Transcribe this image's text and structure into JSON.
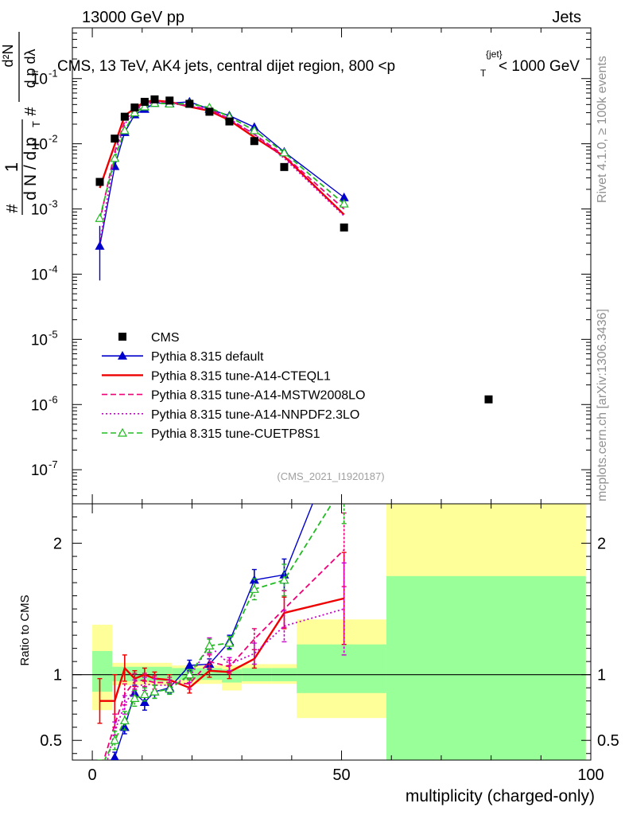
{
  "header": {
    "beam": "13000 GeV pp",
    "category": "Jets"
  },
  "side": {
    "rivet": "Rivet 4.1.0, ≥ 100k events",
    "mcplots": "mcplots.cern.ch [arXiv:1306.3436]"
  },
  "source_tag": "(CMS_2021_I1920187)",
  "chart_data": {
    "type": "line",
    "title": "CMS, 13 TeV, AK4 jets, central dijet region, 800 <p_T^{jet}> < 1000 GeV",
    "ylabel_main": "1/(dN/dp_T) d²N/(dp_T dλ)",
    "ylabel_ratio": "Ratio to CMS",
    "xlabel": "multiplicity (charged-only)",
    "xlim": [
      -4,
      100
    ],
    "ylim_main": [
      3e-08,
      0.6
    ],
    "ylim_ratio": [
      0.35,
      2.3
    ],
    "x_ticks": [
      "0",
      "50",
      "100"
    ],
    "y_ticks_main": [
      "10^-7",
      "10^-6",
      "10^-5",
      "10^-4",
      "10^-3",
      "10^-2",
      "10^-1"
    ],
    "y_ticks_ratio": [
      "0.5",
      "1",
      "2"
    ],
    "data": {
      "name": "CMS",
      "points": [
        {
          "x": 1.5,
          "y": 0.0026
        },
        {
          "x": 4.5,
          "y": 0.012
        },
        {
          "x": 6.5,
          "y": 0.026
        },
        {
          "x": 8.5,
          "y": 0.036
        },
        {
          "x": 10.5,
          "y": 0.044
        },
        {
          "x": 12.5,
          "y": 0.048
        },
        {
          "x": 15.5,
          "y": 0.046
        },
        {
          "x": 19.5,
          "y": 0.041
        },
        {
          "x": 23.5,
          "y": 0.031
        },
        {
          "x": 27.5,
          "y": 0.022
        },
        {
          "x": 32.5,
          "y": 0.011
        },
        {
          "x": 38.5,
          "y": 0.0044
        },
        {
          "x": 50.5,
          "y": 0.00052
        },
        {
          "x": 79.5,
          "y": 1.2e-06
        }
      ],
      "uncertainty_bands": [
        {
          "x0": 0,
          "x1": 4,
          "inner": [
            0.87,
            1.18
          ],
          "outer": [
            0.73,
            1.38
          ]
        },
        {
          "x0": 4,
          "x1": 16,
          "inner": [
            0.95,
            1.06
          ],
          "outer": [
            0.92,
            1.09
          ]
        },
        {
          "x0": 16,
          "x1": 26,
          "inner": [
            0.96,
            1.05
          ],
          "outer": [
            0.93,
            1.07
          ]
        },
        {
          "x0": 26,
          "x1": 30,
          "inner": [
            0.94,
            1.04
          ],
          "outer": [
            0.88,
            1.07
          ]
        },
        {
          "x0": 30,
          "x1": 36,
          "inner": [
            0.95,
            1.05
          ],
          "outer": [
            0.93,
            1.08
          ]
        },
        {
          "x0": 36,
          "x1": 41,
          "inner": [
            0.95,
            1.05
          ],
          "outer": [
            0.93,
            1.08
          ]
        },
        {
          "x0": 41,
          "x1": 59,
          "inner": [
            0.86,
            1.23
          ],
          "outer": [
            0.67,
            1.42
          ]
        },
        {
          "x0": 59,
          "x1": 99,
          "inner": [
            0.0,
            1.75
          ],
          "outer": [
            0.0,
            2.3
          ]
        }
      ]
    },
    "series": [
      {
        "name": "Pythia 8.315 default",
        "color": "#0000cc",
        "style": "solid",
        "marker": "triangle-filled",
        "x": [
          1.5,
          4.5,
          6.5,
          8.5,
          10.5,
          12.5,
          15.5,
          19.5,
          23.5,
          27.5,
          32.5,
          38.5,
          50.5
        ],
        "y": [
          0.00027,
          0.0045,
          0.015,
          0.028,
          0.034,
          0.042,
          0.042,
          0.044,
          0.034,
          0.027,
          0.018,
          0.0075,
          0.0015
        ],
        "ratio": [
          0.1,
          0.37,
          0.6,
          0.86,
          0.79,
          0.87,
          0.9,
          1.07,
          1.08,
          1.25,
          1.72,
          1.76,
          2.9
        ],
        "ratio_err": [
          0.04,
          0.04,
          0.05,
          0.06,
          0.06,
          0.05,
          0.04,
          0.04,
          0.04,
          0.05,
          0.08,
          0.12,
          0.3
        ]
      },
      {
        "name": "Pythia 8.315 tune-A14-CTEQL1",
        "color": "#ee0000",
        "style": "solid",
        "marker": "none",
        "x": [
          1.5,
          4.5,
          6.5,
          8.5,
          10.5,
          12.5,
          15.5,
          19.5,
          23.5,
          27.5,
          32.5,
          38.5,
          50.5
        ],
        "y": [
          0.0021,
          0.0097,
          0.027,
          0.035,
          0.044,
          0.046,
          0.044,
          0.037,
          0.032,
          0.023,
          0.0126,
          0.0064,
          0.00082
        ],
        "ratio": [
          0.8,
          0.8,
          1.05,
          0.97,
          1.0,
          0.97,
          0.96,
          0.9,
          1.03,
          1.02,
          1.12,
          1.47,
          1.58
        ],
        "ratio_err": [
          0.17,
          0.2,
          0.1,
          0.06,
          0.05,
          0.05,
          0.04,
          0.04,
          0.05,
          0.05,
          0.07,
          0.12,
          0.35
        ]
      },
      {
        "name": "Pythia 8.315 tune-A14-MSTW2008LO",
        "color": "#ee0077",
        "style": "dashed",
        "marker": "none",
        "x": [
          1.5,
          4.5,
          6.5,
          8.5,
          10.5,
          12.5,
          15.5,
          19.5,
          23.5,
          27.5,
          32.5,
          38.5,
          50.5
        ],
        "y": [
          0.00065,
          0.0075,
          0.022,
          0.034,
          0.042,
          0.045,
          0.043,
          0.038,
          0.034,
          0.024,
          0.014,
          0.0066,
          0.001
        ],
        "ratio": [
          0.25,
          0.62,
          0.85,
          0.95,
          0.96,
          0.94,
          0.94,
          0.93,
          1.1,
          1.06,
          1.27,
          1.5,
          1.95
        ],
        "ratio_err": [
          0.06,
          0.08,
          0.08,
          0.06,
          0.05,
          0.05,
          0.04,
          0.04,
          0.05,
          0.05,
          0.08,
          0.14,
          0.28
        ]
      },
      {
        "name": "Pythia 8.315 tune-A14-NNPDF2.3LO",
        "color": "#cc00cc",
        "style": "dotted",
        "marker": "none",
        "x": [
          1.5,
          4.5,
          6.5,
          8.5,
          10.5,
          12.5,
          15.5,
          19.5,
          23.5,
          27.5,
          32.5,
          38.5,
          50.5
        ],
        "y": [
          0.0003,
          0.0068,
          0.02,
          0.032,
          0.04,
          0.043,
          0.042,
          0.038,
          0.033,
          0.024,
          0.014,
          0.006,
          0.00078
        ],
        "ratio": [
          0.12,
          0.57,
          0.77,
          0.9,
          0.93,
          0.92,
          0.92,
          0.98,
          1.22,
          1.08,
          1.16,
          1.37,
          1.5
        ],
        "ratio_err": [
          0.05,
          0.07,
          0.07,
          0.06,
          0.05,
          0.05,
          0.04,
          0.04,
          0.06,
          0.05,
          0.08,
          0.12,
          0.35
        ]
      },
      {
        "name": "Pythia 8.315 tune-CUETP8S1",
        "color": "#22bb22",
        "style": "dashed",
        "marker": "triangle-open",
        "x": [
          1.5,
          4.5,
          6.5,
          8.5,
          10.5,
          12.5,
          15.5,
          19.5,
          23.5,
          27.5,
          32.5,
          38.5,
          50.5
        ],
        "y": [
          0.00072,
          0.006,
          0.016,
          0.03,
          0.037,
          0.042,
          0.041,
          0.041,
          0.036,
          0.026,
          0.016,
          0.0073,
          0.0012
        ],
        "ratio": [
          0.28,
          0.5,
          0.65,
          0.82,
          0.85,
          0.87,
          0.89,
          1.0,
          1.22,
          1.24,
          1.65,
          1.72,
          2.45
        ],
        "ratio_err": [
          0.07,
          0.07,
          0.07,
          0.06,
          0.05,
          0.05,
          0.04,
          0.04,
          0.05,
          0.05,
          0.08,
          0.12,
          0.3
        ]
      }
    ]
  }
}
